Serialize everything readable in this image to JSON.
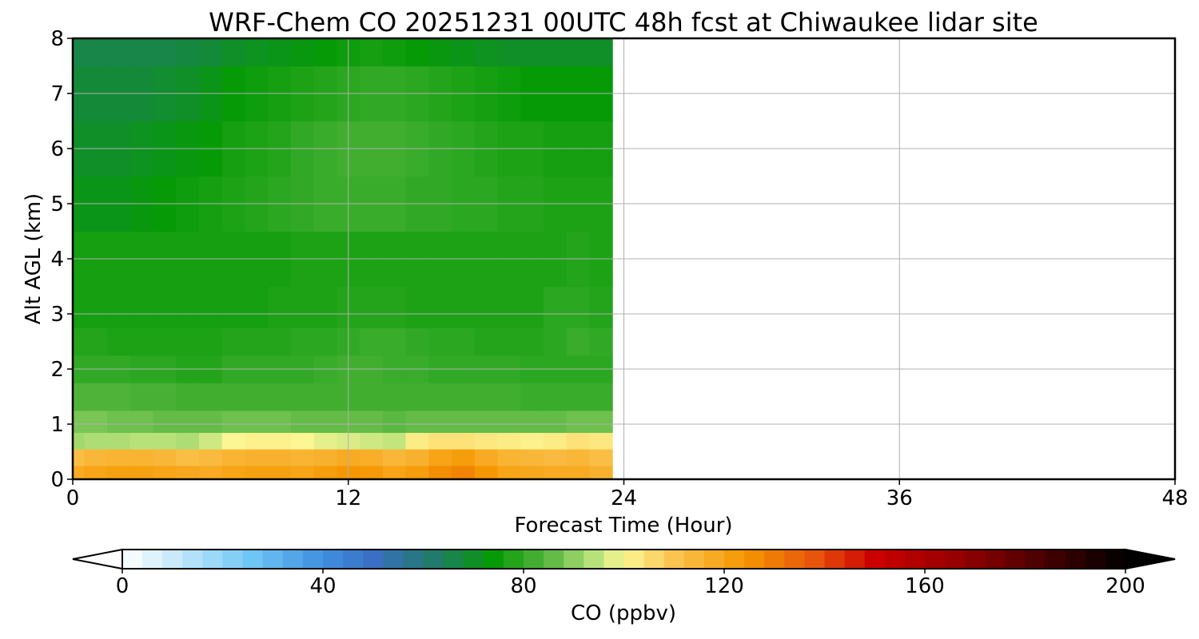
{
  "chart_data": {
    "type": "heatmap",
    "title": "WRF-Chem CO  20251231 00UTC 48h fcst at Chiwaukee lidar site",
    "xlabel": "Forecast Time (Hour)",
    "ylabel": "Alt AGL (km)",
    "xlim": [
      0,
      48
    ],
    "ylim": [
      0,
      8
    ],
    "xticks": [
      "0",
      "12",
      "24",
      "36",
      "48"
    ],
    "yticks": [
      "0",
      "1",
      "2",
      "3",
      "4",
      "5",
      "6",
      "7",
      "8"
    ],
    "grid": true,
    "x": [
      0,
      1,
      2,
      3,
      4,
      5,
      6,
      7,
      8,
      9,
      10,
      11,
      12,
      13,
      14,
      15,
      16,
      17,
      18,
      19,
      20,
      21,
      22,
      23
    ],
    "y": [
      0.1,
      0.4,
      0.7,
      1.0,
      1.5,
      2.0,
      2.5,
      3.0,
      4.0,
      5.0,
      6.0,
      7.0,
      8.0
    ],
    "values": [
      [
        118,
        120,
        121,
        121,
        120,
        119,
        118,
        120,
        121,
        121,
        120,
        122,
        124,
        123,
        120,
        122,
        126,
        128,
        124,
        120,
        119,
        118,
        118,
        116
      ],
      [
        112,
        114,
        115,
        115,
        114,
        112,
        113,
        115,
        116,
        116,
        115,
        116,
        118,
        117,
        114,
        116,
        120,
        122,
        118,
        115,
        114,
        113,
        114,
        112
      ],
      [
        92,
        93,
        93,
        94,
        94,
        93,
        96,
        100,
        101,
        101,
        100,
        98,
        97,
        96,
        95,
        102,
        104,
        104,
        103,
        102,
        101,
        102,
        104,
        103
      ],
      [
        88,
        88,
        87,
        87,
        86,
        86,
        86,
        87,
        87,
        87,
        86,
        86,
        86,
        86,
        85,
        86,
        86,
        86,
        86,
        86,
        86,
        86,
        87,
        87
      ],
      [
        84,
        84,
        84,
        83,
        83,
        82,
        82,
        82,
        82,
        82,
        82,
        82,
        82,
        82,
        82,
        82,
        82,
        82,
        82,
        82,
        81,
        81,
        81,
        81
      ],
      [
        80,
        80,
        80,
        79,
        79,
        78,
        78,
        80,
        80,
        80,
        80,
        81,
        82,
        82,
        81,
        81,
        80,
        80,
        80,
        80,
        79,
        79,
        79,
        79
      ],
      [
        78,
        78,
        77,
        77,
        77,
        77,
        77,
        78,
        78,
        78,
        79,
        79,
        80,
        81,
        81,
        80,
        79,
        79,
        78,
        78,
        78,
        79,
        81,
        80
      ],
      [
        76,
        76,
        76,
        76,
        76,
        76,
        76,
        76,
        76,
        77,
        77,
        77,
        78,
        78,
        78,
        77,
        77,
        77,
        77,
        77,
        77,
        79,
        79,
        78
      ],
      [
        76,
        76,
        76,
        76,
        76,
        76,
        76,
        76,
        76,
        76,
        77,
        77,
        77,
        77,
        77,
        77,
        77,
        77,
        77,
        77,
        77,
        77,
        78,
        77
      ],
      [
        72,
        72,
        72,
        73,
        74,
        75,
        76,
        77,
        78,
        79,
        80,
        81,
        81,
        81,
        81,
        80,
        80,
        79,
        79,
        78,
        78,
        77,
        77,
        77
      ],
      [
        70,
        70,
        70,
        71,
        72,
        73,
        74,
        76,
        77,
        78,
        80,
        81,
        82,
        82,
        82,
        81,
        80,
        79,
        78,
        77,
        77,
        76,
        76,
        76
      ],
      [
        68,
        68,
        68,
        68,
        69,
        70,
        72,
        74,
        75,
        76,
        77,
        78,
        79,
        80,
        80,
        79,
        78,
        77,
        76,
        75,
        74,
        74,
        74,
        74
      ],
      [
        66,
        66,
        66,
        66,
        66,
        67,
        68,
        70,
        71,
        72,
        73,
        74,
        75,
        76,
        75,
        74,
        73,
        72,
        71,
        70,
        70,
        70,
        70,
        70
      ]
    ],
    "colorbar": {
      "label": "CO  (ppbv)",
      "min": 0,
      "max": 200,
      "ticks": [
        "0",
        "40",
        "80",
        "120",
        "160",
        "200"
      ],
      "stops": [
        {
          "v": 0,
          "c": "#ffffff"
        },
        {
          "v": 12,
          "c": "#bfe6fb"
        },
        {
          "v": 26,
          "c": "#6ec6f5"
        },
        {
          "v": 40,
          "c": "#3f8fe0"
        },
        {
          "v": 50,
          "c": "#3a6fc4"
        },
        {
          "v": 62,
          "c": "#217a6a"
        },
        {
          "v": 74,
          "c": "#079a07"
        },
        {
          "v": 84,
          "c": "#4fb33a"
        },
        {
          "v": 94,
          "c": "#b7e27a"
        },
        {
          "v": 100,
          "c": "#fcf694"
        },
        {
          "v": 110,
          "c": "#fbc450"
        },
        {
          "v": 124,
          "c": "#f59700"
        },
        {
          "v": 138,
          "c": "#e8540c"
        },
        {
          "v": 150,
          "c": "#cc0000"
        },
        {
          "v": 168,
          "c": "#900000"
        },
        {
          "v": 186,
          "c": "#3d0000"
        },
        {
          "v": 200,
          "c": "#000000"
        }
      ]
    }
  }
}
